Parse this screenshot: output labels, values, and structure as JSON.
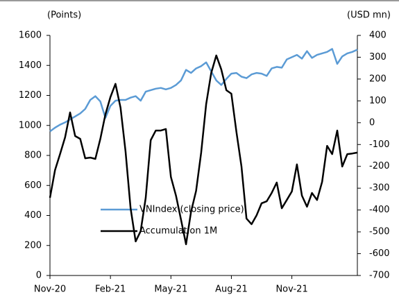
{
  "chart_data": {
    "type": "line",
    "ylabel": "(Points)",
    "y2label": "(USD mn)",
    "categories": [
      "Nov-20",
      null,
      null,
      null,
      null,
      null,
      null,
      null,
      null,
      null,
      null,
      null,
      "Feb-21",
      null,
      null,
      null,
      null,
      null,
      null,
      null,
      null,
      null,
      null,
      null,
      "May-21",
      null,
      null,
      null,
      null,
      null,
      null,
      null,
      null,
      null,
      null,
      null,
      "Aug-21",
      null,
      null,
      null,
      null,
      null,
      null,
      null,
      null,
      null,
      null,
      null,
      "Nov-21",
      null,
      null,
      null,
      null,
      null,
      null,
      null,
      null,
      null,
      null,
      null,
      null,
      null
    ],
    "ylim": [
      0,
      1600
    ],
    "yticks": [
      0,
      200,
      400,
      600,
      800,
      1000,
      1200,
      1400,
      1600
    ],
    "y2lim": [
      -700,
      400
    ],
    "y2ticks": [
      -700,
      -600,
      -500,
      -400,
      -300,
      -200,
      -100,
      0,
      100,
      200,
      300,
      400
    ],
    "legend": "center",
    "series": [
      {
        "name": "VNIndex (closing price)",
        "color": "#5b9bd5",
        "values": [
          960,
          985,
          1005,
          1020,
          1040,
          1060,
          1080,
          1110,
          1170,
          1195,
          1160,
          1050,
          1130,
          1165,
          1170,
          1170,
          1185,
          1195,
          1165,
          1225,
          1235,
          1245,
          1250,
          1240,
          1250,
          1270,
          1300,
          1370,
          1350,
          1380,
          1395,
          1420,
          1360,
          1300,
          1270,
          1310,
          1345,
          1350,
          1325,
          1315,
          1340,
          1350,
          1345,
          1330,
          1380,
          1390,
          1385,
          1440,
          1455,
          1470,
          1445,
          1495,
          1450,
          1470,
          1480,
          1490,
          1510,
          1410,
          1460,
          1480,
          1490,
          1505
        ]
      },
      {
        "name": "Accumulation 1M",
        "color": "#000000",
        "axis": "y2",
        "values": [
          -344,
          -217,
          -144,
          -67,
          47,
          -61,
          -74,
          -163,
          -160,
          -166,
          -74,
          38,
          117,
          178,
          69,
          -131,
          -392,
          -544,
          -497,
          -344,
          -80,
          -36,
          -36,
          -29,
          -249,
          -334,
          -443,
          -557,
          -408,
          -312,
          -137,
          85,
          228,
          308,
          244,
          149,
          133,
          -42,
          -201,
          -439,
          -465,
          -424,
          -369,
          -360,
          -322,
          -274,
          -392,
          -354,
          -315,
          -191,
          -334,
          -385,
          -322,
          -354,
          -271,
          -106,
          -144,
          -36,
          -201,
          -144,
          -141,
          -137
        ]
      }
    ]
  }
}
